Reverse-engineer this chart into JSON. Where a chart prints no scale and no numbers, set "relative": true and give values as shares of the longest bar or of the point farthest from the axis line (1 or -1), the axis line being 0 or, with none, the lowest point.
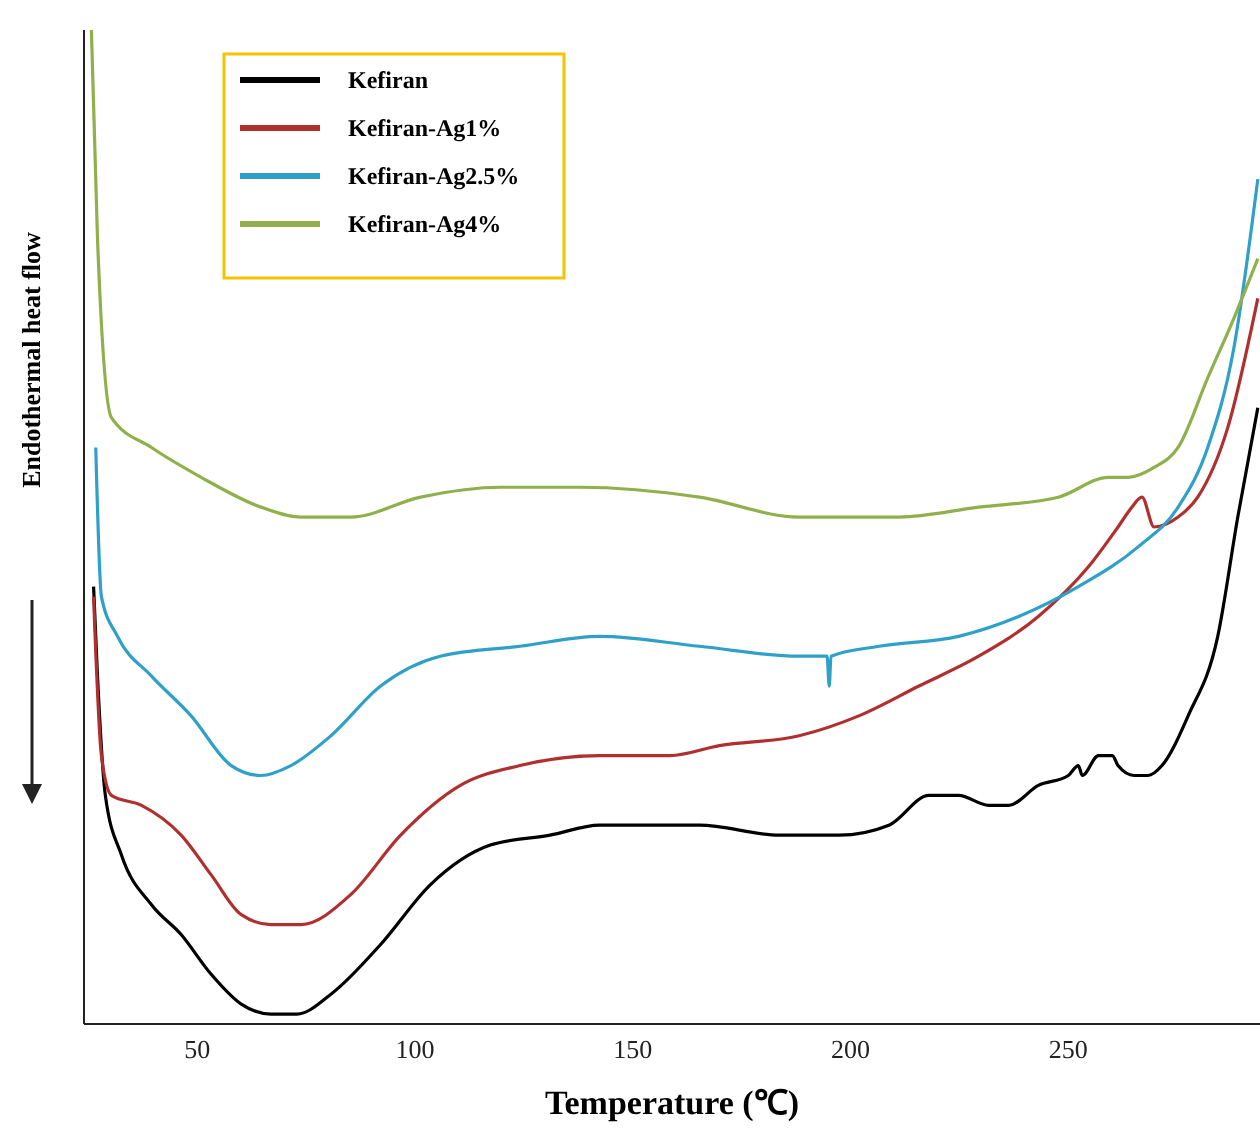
{
  "chart_data": {
    "type": "line",
    "relative": true,
    "xlabel": "Temperature (℃)",
    "ylabel": "Endothermal heat flow",
    "xlim": [
      24,
      294
    ],
    "xticks": [
      50,
      100,
      150,
      200,
      250
    ],
    "tick_labels": "x",
    "legend": "top left",
    "grid": false,
    "line_style": "solid",
    "marker": "none",
    "series": [
      {
        "name": "Kefiran",
        "color": "#000000",
        "x": [
          26.2,
          27.1,
          28.9,
          32.6,
          39.5,
          46.3,
          53.2,
          60.1,
          66.9,
          72.9,
          80.7,
          92.1,
          103.5,
          117.3,
          131.0,
          142.4,
          151.6,
          165.3,
          183.6,
          197.4,
          208.8,
          218.0,
          224.8,
          231.7,
          236.3,
          243.1,
          250.0,
          252.3,
          253.2,
          256.9,
          260.1,
          261.4,
          265.1,
          268.3,
          271.5,
          277.5,
          284.3,
          288.9,
          293.5
        ],
        "values": [
          0.44,
          0.35,
          0.23,
          0.17,
          0.12,
          0.09,
          0.05,
          0.02,
          0.01,
          0.01,
          0.03,
          0.08,
          0.14,
          0.18,
          0.19,
          0.2,
          0.2,
          0.2,
          0.19,
          0.19,
          0.2,
          0.23,
          0.23,
          0.22,
          0.22,
          0.24,
          0.25,
          0.26,
          0.25,
          0.27,
          0.27,
          0.26,
          0.25,
          0.25,
          0.26,
          0.31,
          0.39,
          0.51,
          0.62
        ]
      },
      {
        "name": "Kefiran-Ag1%",
        "color": "#b03030",
        "x": [
          26.2,
          28.0,
          30.3,
          37.2,
          46.3,
          53.2,
          60.1,
          66.9,
          73.8,
          85.2,
          96.7,
          110.4,
          124.1,
          142.4,
          158.5,
          169.9,
          188.2,
          201.9,
          215.7,
          229.4,
          243.1,
          254.6,
          261.4,
          264.6,
          266.9,
          269.7,
          275.2,
          279.7,
          286.6,
          293.5
        ],
        "values": [
          0.43,
          0.27,
          0.23,
          0.22,
          0.19,
          0.15,
          0.11,
          0.1,
          0.1,
          0.13,
          0.19,
          0.24,
          0.26,
          0.27,
          0.27,
          0.28,
          0.29,
          0.31,
          0.34,
          0.37,
          0.41,
          0.46,
          0.5,
          0.52,
          0.53,
          0.5,
          0.51,
          0.53,
          0.6,
          0.73
        ]
      },
      {
        "name": "Kefiran-Ag2.5%",
        "color": "#2fa0c8",
        "x": [
          26.7,
          28.0,
          31.7,
          39.5,
          48.6,
          57.8,
          64.6,
          71.5,
          80.7,
          92.1,
          105.8,
          124.1,
          142.4,
          165.3,
          188.2,
          193.7,
          194.6,
          195.1,
          195.5,
          206.5,
          224.8,
          238.6,
          252.3,
          266.0,
          275.2,
          282.0,
          288.0,
          293.5
        ],
        "values": [
          0.58,
          0.43,
          0.39,
          0.35,
          0.31,
          0.26,
          0.25,
          0.26,
          0.29,
          0.34,
          0.37,
          0.38,
          0.39,
          0.38,
          0.37,
          0.37,
          0.37,
          0.34,
          0.37,
          0.38,
          0.39,
          0.41,
          0.44,
          0.48,
          0.52,
          0.58,
          0.68,
          0.85
        ]
      },
      {
        "name": "Kefiran-Ag4%",
        "color": "#8fb04a",
        "x": [
          25.7,
          27.1,
          30.3,
          39.5,
          50.9,
          64.6,
          73.8,
          85.2,
          101.3,
          119.6,
          137.9,
          165.3,
          188.2,
          211.1,
          229.4,
          247.7,
          259.2,
          263.7,
          269.7,
          275.2,
          282.0,
          288.0,
          293.5
        ],
        "values": [
          1.0,
          0.79,
          0.61,
          0.58,
          0.55,
          0.52,
          0.51,
          0.51,
          0.53,
          0.54,
          0.54,
          0.53,
          0.51,
          0.51,
          0.52,
          0.53,
          0.55,
          0.55,
          0.56,
          0.58,
          0.65,
          0.71,
          0.77
        ]
      }
    ]
  }
}
